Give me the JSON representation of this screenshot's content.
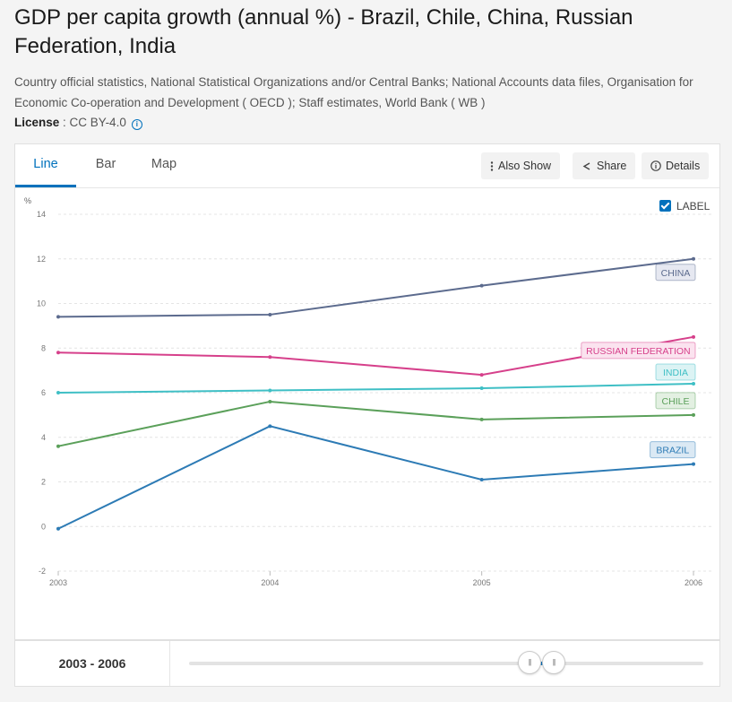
{
  "title": "GDP per capita growth (annual %) - Brazil, Chile, China, Russian Federation, India",
  "source": "Country official statistics, National Statistical Organizations and/or Central Banks; National Accounts data files, Organisation for Economic Co-operation and Development ( OECD ); Staff estimates, World Bank ( WB )",
  "license": {
    "label": "License",
    "sep": " : ",
    "value": "CC BY-4.0"
  },
  "tabs": [
    {
      "label": "Line"
    },
    {
      "label": "Bar"
    },
    {
      "label": "Map"
    }
  ],
  "toolbar": {
    "also_show": "Also Show",
    "share": "Share",
    "details": "Details"
  },
  "label_toggle": {
    "label": "LABEL",
    "checked": true
  },
  "range": {
    "start": "2003",
    "sep": " - ",
    "end": "2006"
  },
  "colors": {
    "accent": "#0071bc"
  },
  "chart_data": {
    "type": "line",
    "title": "GDP per capita growth (annual %)",
    "ylabel": "%",
    "xlabel": "",
    "categories": [
      "2003",
      "2004",
      "2005",
      "2006"
    ],
    "ylim": [
      -2,
      14
    ],
    "yticks": [
      -2,
      0,
      2,
      4,
      6,
      8,
      10,
      12,
      14
    ],
    "grid": true,
    "series": [
      {
        "name": "CHINA",
        "color": "#5c6b8e",
        "label_bg": "#e6e8f1",
        "values": [
          9.4,
          9.5,
          10.8,
          12.0
        ]
      },
      {
        "name": "RUSSIAN FEDERATION",
        "color": "#d6408b",
        "label_bg": "#fbe3ef",
        "values": [
          7.8,
          7.6,
          6.8,
          8.5
        ]
      },
      {
        "name": "INDIA",
        "color": "#3fbfc5",
        "label_bg": "#dcf3f4",
        "values": [
          6.0,
          6.1,
          6.2,
          6.4
        ]
      },
      {
        "name": "CHILE",
        "color": "#5ba05a",
        "label_bg": "#e3f0e2",
        "values": [
          3.6,
          5.6,
          4.8,
          5.0
        ]
      },
      {
        "name": "BRAZIL",
        "color": "#2d7bb5",
        "label_bg": "#dbe9f4",
        "values": [
          -0.1,
          4.5,
          2.1,
          2.8
        ]
      }
    ]
  }
}
